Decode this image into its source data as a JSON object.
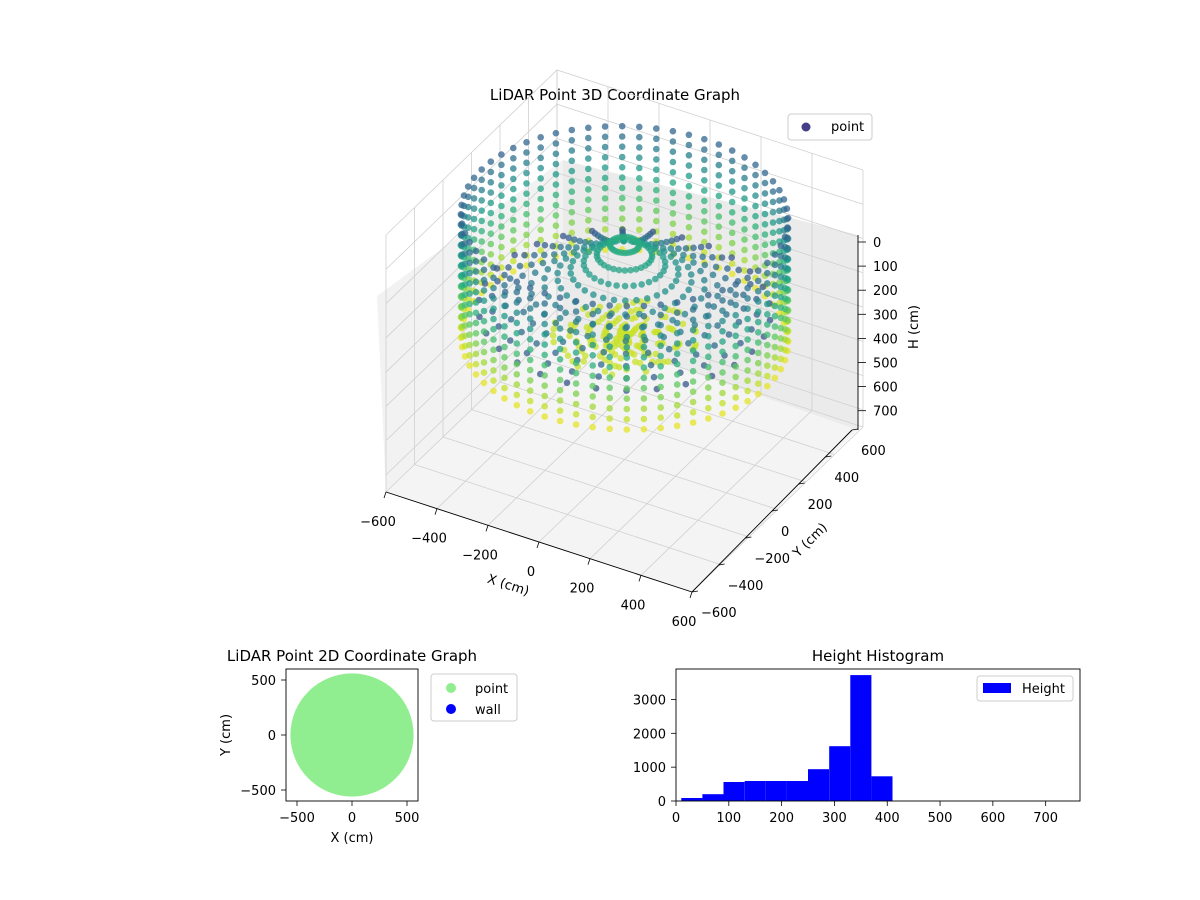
{
  "chart_data": [
    {
      "type": "scatter3d",
      "title": "LiDAR Point 3D Coordinate Graph",
      "xlabel": "X (cm)",
      "ylabel": "Y (cm)",
      "zlabel": "H (cm)",
      "xlim": [
        -600,
        600
      ],
      "ylim": [
        -600,
        600
      ],
      "zlim": [
        0,
        750
      ],
      "z_inverted": true,
      "x_ticks": [
        "−600",
        "−400",
        "−200",
        "0",
        "200",
        "400",
        "600"
      ],
      "y_ticks": [
        "−600",
        "−400",
        "−200",
        "0",
        "200",
        "400",
        "600"
      ],
      "z_ticks": [
        "0",
        "100",
        "200",
        "300",
        "400",
        "500",
        "600",
        "700"
      ],
      "colormap": "viridis",
      "legend": {
        "position": "top-right",
        "entries": [
          {
            "label": "point",
            "color": "#433e85"
          }
        ]
      },
      "shape": {
        "wall_radius_cm": 560,
        "height_range_cm": [
          0,
          420
        ]
      }
    },
    {
      "type": "scatter",
      "title": "LiDAR Point 2D Coordinate Graph",
      "xlabel": "X (cm)",
      "ylabel": "Y (cm)",
      "xlim": [
        -600,
        600
      ],
      "ylim": [
        -600,
        600
      ],
      "x_ticks": [
        "−500",
        "0",
        "500"
      ],
      "y_ticks": [
        "−500",
        "0",
        "500"
      ],
      "legend": {
        "position": "outside-right",
        "entries": [
          {
            "label": "point",
            "color": "#90ee90"
          },
          {
            "label": "wall",
            "color": "#0000ff"
          }
        ]
      },
      "series": [
        {
          "name": "point",
          "color": "#90ee90",
          "shape": "filled disc",
          "radius": 560
        },
        {
          "name": "wall",
          "color": "#0000ff",
          "values": []
        }
      ]
    },
    {
      "type": "bar",
      "title": "Height Histogram",
      "xlim": [
        0,
        765
      ],
      "ylim": [
        0,
        3900
      ],
      "x_ticks": [
        "0",
        "100",
        "200",
        "300",
        "400",
        "500",
        "600",
        "700"
      ],
      "y_ticks": [
        "0",
        "1000",
        "2000",
        "3000"
      ],
      "color": "#0000ff",
      "legend": {
        "position": "top-right",
        "entries": [
          {
            "label": "Height",
            "color": "#0000ff"
          }
        ]
      },
      "bins": [
        {
          "x0": 10,
          "x1": 50,
          "count": 90
        },
        {
          "x0": 50,
          "x1": 90,
          "count": 200
        },
        {
          "x0": 90,
          "x1": 130,
          "count": 560
        },
        {
          "x0": 130,
          "x1": 170,
          "count": 590
        },
        {
          "x0": 170,
          "x1": 210,
          "count": 590
        },
        {
          "x0": 210,
          "x1": 250,
          "count": 590
        },
        {
          "x0": 250,
          "x1": 290,
          "count": 940
        },
        {
          "x0": 290,
          "x1": 330,
          "count": 1620
        },
        {
          "x0": 330,
          "x1": 370,
          "count": 3720
        },
        {
          "x0": 370,
          "x1": 410,
          "count": 730
        },
        {
          "x0": 410,
          "x1": 450,
          "count": 0
        },
        {
          "x0": 450,
          "x1": 490,
          "count": 0
        },
        {
          "x0": 490,
          "x1": 530,
          "count": 0
        },
        {
          "x0": 530,
          "x1": 570,
          "count": 0
        },
        {
          "x0": 570,
          "x1": 610,
          "count": 0
        },
        {
          "x0": 610,
          "x1": 650,
          "count": 0
        },
        {
          "x0": 650,
          "x1": 690,
          "count": 0
        },
        {
          "x0": 690,
          "x1": 730,
          "count": 0
        },
        {
          "x0": 730,
          "x1": 770,
          "count": 0
        }
      ]
    }
  ]
}
